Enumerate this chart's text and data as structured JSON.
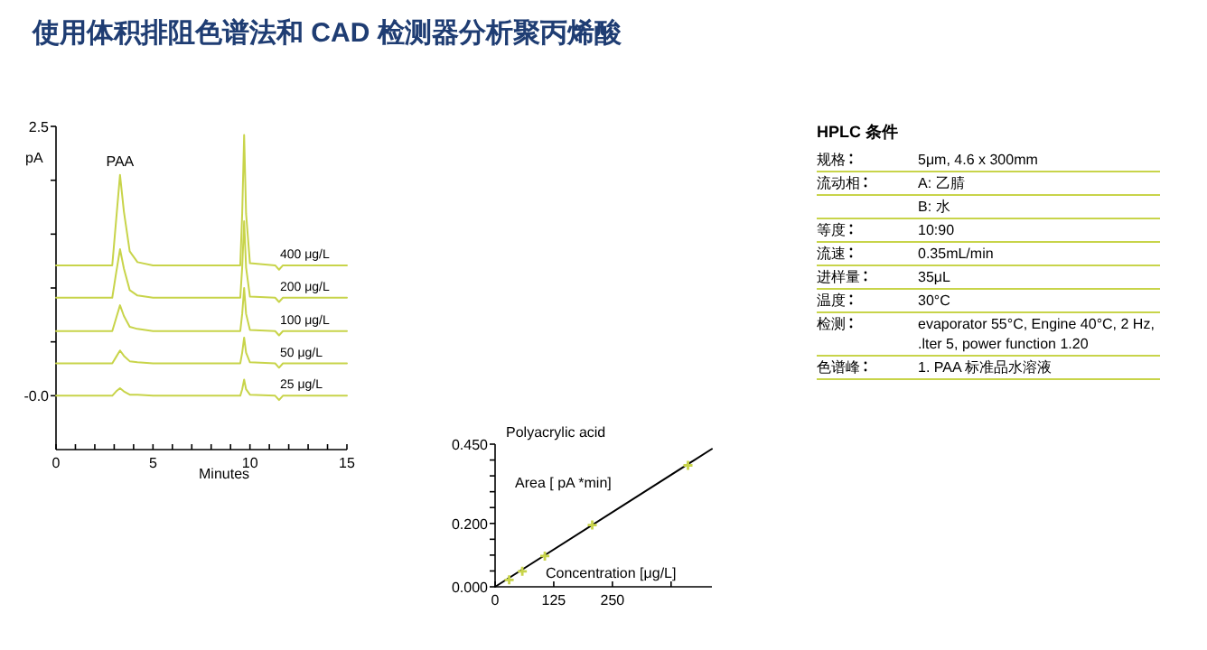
{
  "chart_data": [
    {
      "type": "line",
      "title": "使用体积排阻色谱法和 CAD 检测器分析聚丙烯酸",
      "xlabel": "Minutes",
      "ylabel": "pA",
      "xlim": [
        0,
        15
      ],
      "ylim": [
        -0.5,
        2.5
      ],
      "xticks": [
        0,
        {
          "value": 1,
          "label": null
        },
        {
          "value": 2,
          "label": null
        },
        {
          "value": 3,
          "label": null
        },
        {
          "value": 4,
          "label": null
        },
        5,
        {
          "value": 6,
          "label": null
        },
        {
          "value": 7,
          "label": null
        },
        {
          "value": 8,
          "label": null
        },
        {
          "value": 9,
          "label": null
        },
        10,
        {
          "value": 11,
          "label": null
        },
        {
          "value": 12,
          "label": null
        },
        {
          "value": 13,
          "label": null
        },
        {
          "value": 14,
          "label": null
        },
        15
      ],
      "yticks": [
        {
          "value": 2.5,
          "label": "2.5"
        },
        {
          "value": 2,
          "label": null
        },
        {
          "value": 1.5,
          "label": null
        },
        {
          "value": 1,
          "label": null
        },
        {
          "value": 0.5,
          "label": null
        },
        {
          "value": 0,
          "label": "-0.0"
        }
      ],
      "x": [
        0,
        2.9,
        3.1,
        3.3,
        3.5,
        3.8,
        4.2,
        5,
        9.5,
        9.6,
        9.7,
        9.8,
        10,
        11.3,
        11.5,
        11.7,
        15
      ],
      "marker": "none",
      "grid": false,
      "series": [
        {
          "name": "400 μg/L",
          "color": "#c8d44a",
          "values": [
            1.21,
            1.21,
            1.63,
            2.05,
            1.71,
            1.34,
            1.24,
            1.21,
            1.21,
            1.69,
            2.42,
            1.69,
            1.23,
            1.21,
            1.17,
            1.21,
            1.21
          ]
        },
        {
          "name": "200 μg/L",
          "color": "#c8d44a",
          "values": [
            0.91,
            0.91,
            1.14,
            1.36,
            1.18,
            0.98,
            0.93,
            0.91,
            0.91,
            1.19,
            1.62,
            1.19,
            0.92,
            0.91,
            0.87,
            0.91,
            0.91
          ]
        },
        {
          "name": "100 μg/L",
          "color": "#c8d44a",
          "values": [
            0.6,
            0.6,
            0.72,
            0.84,
            0.74,
            0.64,
            0.62,
            0.6,
            0.6,
            0.76,
            1.0,
            0.76,
            0.61,
            0.6,
            0.56,
            0.6,
            0.6
          ]
        },
        {
          "name": "50 μg/L",
          "color": "#c8d44a",
          "values": [
            0.3,
            0.3,
            0.36,
            0.42,
            0.37,
            0.32,
            0.31,
            0.3,
            0.3,
            0.4,
            0.54,
            0.4,
            0.31,
            0.3,
            0.26,
            0.3,
            0.3
          ]
        },
        {
          "name": "25 μg/L",
          "color": "#c8d44a",
          "values": [
            0,
            0,
            0.04,
            0.07,
            0.04,
            0.01,
            0.01,
            0,
            0,
            0.06,
            0.15,
            0.06,
            0.01,
            0,
            -0.04,
            0,
            0
          ]
        }
      ],
      "annotations": [
        {
          "text": "PAA",
          "x": 3.3,
          "y": 2.05
        }
      ]
    },
    {
      "type": "scatter",
      "title": "Polyacrylic acid",
      "xlabel": "Concentration [μg/L]",
      "ylabel": "Area [ pA *min]",
      "xlim": [
        0,
        462
      ],
      "ylim": [
        0,
        0.45
      ],
      "xticks": [
        0,
        125,
        250,
        {
          "value": 375,
          "label": null
        }
      ],
      "yticks": [
        {
          "value": 0,
          "label": "0.000"
        },
        {
          "value": 0.05,
          "label": null
        },
        {
          "value": 0.1,
          "label": null
        },
        {
          "value": 0.15,
          "label": null
        },
        {
          "value": 0.2,
          "label": "0.200"
        },
        {
          "value": 0.25,
          "label": null
        },
        {
          "value": 0.3,
          "label": null
        },
        {
          "value": 0.35,
          "label": null
        },
        {
          "value": 0.4,
          "label": null
        },
        {
          "value": 0.45,
          "label": "0.450"
        }
      ],
      "grid": false,
      "series": [
        {
          "type": "line",
          "color": "#000000",
          "x": [
            0,
            462
          ],
          "values": [
            0,
            0.435
          ]
        },
        {
          "type": "scatter",
          "marker": "cross",
          "color": "#c8d44a",
          "x": [
            30,
            58,
            106,
            207,
            411
          ],
          "values": [
            0.022,
            0.049,
            0.097,
            0.195,
            0.383
          ]
        }
      ]
    },
    {
      "type": "other",
      "title": "HPLC 条件",
      "categories": [
        "规格",
        "流动相",
        null,
        "等度",
        "流速",
        "进样量",
        "温度",
        "检测",
        "色谱峰"
      ],
      "value_labels": [
        "5μm, 4.6 x 300mm",
        "A: 乙腈",
        "B: 水",
        "10:90",
        "0.35mL/min",
        "35μL",
        "30°C",
        "evaporator 55°C, Engine 40°C, 2 Hz, .lter 5, power function 1.20",
        "1. PAA 标准品水溶液"
      ]
    }
  ]
}
